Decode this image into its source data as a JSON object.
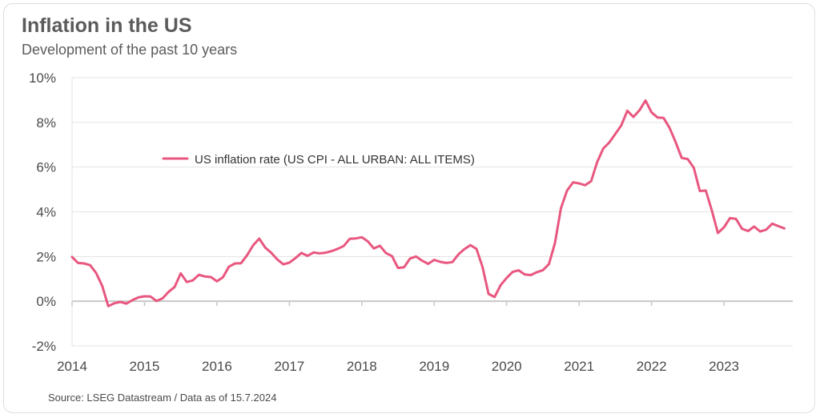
{
  "header": {
    "title": "Inflation in the US",
    "subtitle": "Development of the past 10 years"
  },
  "footer": {
    "source": "Source: LSEG Datastream / Data as of 15.7.2024"
  },
  "colors": {
    "series": "#e8577f",
    "grid": "#e3e3e3",
    "zero_line": "#c8c8c8",
    "text": "#4a4a4a"
  },
  "chart_data": {
    "type": "line",
    "title": "Inflation in the US",
    "subtitle": "Development of the past 10 years",
    "xlabel": "",
    "ylabel": "",
    "ylim": [
      -2,
      10
    ],
    "yticks": [
      -2,
      0,
      2,
      4,
      6,
      8,
      10
    ],
    "ytick_labels": [
      "-2%",
      "0%",
      "2%",
      "4%",
      "6%",
      "8%",
      "10%"
    ],
    "xlim": [
      2014.0,
      2023.95
    ],
    "xticks": [
      2014,
      2015,
      2016,
      2017,
      2018,
      2019,
      2020,
      2021,
      2022,
      2023
    ],
    "xtick_labels": [
      "2014",
      "2015",
      "2016",
      "2017",
      "2018",
      "2019",
      "2020",
      "2021",
      "2022",
      "2023"
    ],
    "grid": true,
    "legend": "upper-left, inside plot",
    "series": [
      {
        "name": "US inflation rate (US CPI - ALL URBAN: ALL ITEMS)",
        "start": 2014.0,
        "step": 0.08333,
        "values": [
          1.98,
          1.71,
          1.69,
          1.61,
          1.26,
          0.68,
          -0.22,
          -0.09,
          -0.03,
          -0.11,
          0.05,
          0.17,
          0.22,
          0.21,
          0.01,
          0.13,
          0.42,
          0.64,
          1.25,
          0.86,
          0.93,
          1.18,
          1.11,
          1.08,
          0.89,
          1.07,
          1.55,
          1.69,
          1.7,
          2.06,
          2.5,
          2.8,
          2.4,
          2.17,
          1.87,
          1.65,
          1.72,
          1.93,
          2.16,
          2.03,
          2.18,
          2.14,
          2.17,
          2.24,
          2.34,
          2.47,
          2.79,
          2.81,
          2.86,
          2.68,
          2.36,
          2.48,
          2.16,
          2.02,
          1.49,
          1.52,
          1.91,
          2.0,
          1.81,
          1.67,
          1.85,
          1.76,
          1.71,
          1.75,
          2.09,
          2.33,
          2.51,
          2.34,
          1.54,
          0.33,
          0.19,
          0.72,
          1.04,
          1.31,
          1.38,
          1.2,
          1.17,
          1.3,
          1.39,
          1.66,
          2.6,
          4.16,
          4.95,
          5.32,
          5.27,
          5.19,
          5.37,
          6.23,
          6.83,
          7.1,
          7.48,
          7.87,
          8.52,
          8.24,
          8.54,
          8.98,
          8.45,
          8.22,
          8.2,
          7.75,
          7.12,
          6.41,
          6.36,
          5.97,
          4.93,
          4.95,
          4.05,
          3.05,
          3.3,
          3.72,
          3.68,
          3.24,
          3.14,
          3.34,
          3.12,
          3.2,
          3.47,
          3.36,
          3.26
        ]
      }
    ]
  }
}
